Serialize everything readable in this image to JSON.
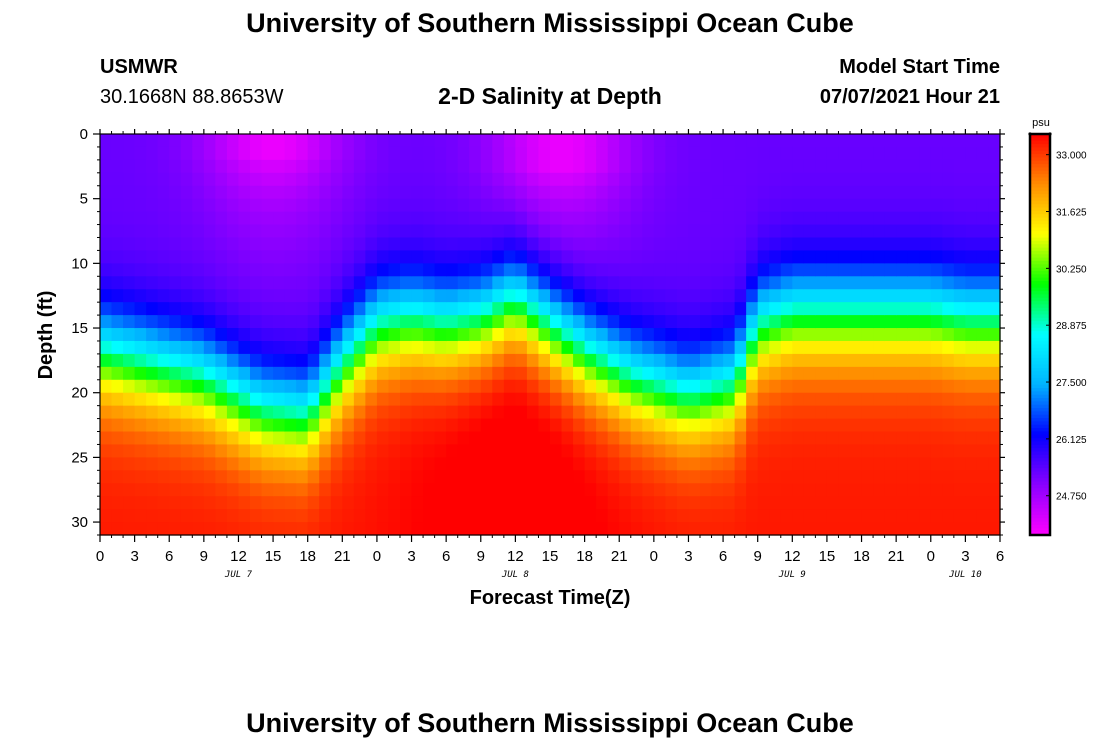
{
  "header": {
    "title": "University of Southern Mississippi Ocean Cube",
    "footer_title": "University of Southern Mississippi Ocean Cube",
    "station_name": "USMWR",
    "station_coords": "30.1668N  88.8653W",
    "model_label": "Model Start Time",
    "model_time": "07/07/2021 Hour 21"
  },
  "colors": {
    "scale": [
      "#ff00ff",
      "#8a00ff",
      "#0000ff",
      "#00b4ff",
      "#00ffff",
      "#00ff00",
      "#ffff00",
      "#ff8c00",
      "#ff0000"
    ]
  },
  "chart_data": {
    "type": "heatmap",
    "title": "2-D Salinity at Depth",
    "xlabel": "Forecast Time(Z)",
    "ylabel": "Depth (ft)",
    "colorbar_unit": "psu",
    "colorbar_range": [
      23.8,
      33.5
    ],
    "colorbar_ticks": [
      "33.000",
      "31.625",
      "30.250",
      "28.875",
      "27.500",
      "26.125",
      "24.750"
    ],
    "colorbar_tick_values": [
      33.0,
      31.625,
      30.25,
      28.875,
      27.5,
      26.125,
      24.75
    ],
    "x_range_hours": [
      0,
      78
    ],
    "x_tick_labels": [
      "0",
      "3",
      "6",
      "9",
      "12",
      "15",
      "18",
      "21",
      "0",
      "3",
      "6",
      "9",
      "12",
      "15",
      "18",
      "21",
      "0",
      "3",
      "6",
      "9",
      "12",
      "15",
      "18",
      "21",
      "0",
      "3",
      "6"
    ],
    "date_labels": [
      {
        "hour": 12,
        "label": "JUL 7"
      },
      {
        "hour": 36,
        "label": "JUL 8"
      },
      {
        "hour": 60,
        "label": "JUL 9"
      },
      {
        "hour": 75,
        "label": "JUL 10"
      }
    ],
    "y_range_ft": [
      0,
      31
    ],
    "y_tick_values": [
      0,
      5,
      10,
      15,
      20,
      25,
      30
    ],
    "y_tick_labels": [
      "0",
      "5",
      "10",
      "15",
      "20",
      "25",
      "30"
    ],
    "cell_hours": 1,
    "cell_depth_ft": 1,
    "isohaline_depth_28_9psu": {
      "hours": [
        0,
        9,
        14,
        18,
        21,
        24,
        27,
        30,
        33,
        36,
        39,
        42,
        46,
        51,
        55,
        57,
        60,
        63,
        66,
        69,
        72,
        75,
        78
      ],
      "depth_ft": [
        16.5,
        18.5,
        21.0,
        21.5,
        17.5,
        14.5,
        14.0,
        14.5,
        14.0,
        12.5,
        14.5,
        16.5,
        18.5,
        20.0,
        19.0,
        14.5,
        13.5,
        13.5,
        13.5,
        13.5,
        13.5,
        14.0,
        14.0
      ]
    },
    "fresh_water_cores": [
      {
        "hour": 15,
        "depth_ft": 1.5,
        "salinity_psu": 24.0
      },
      {
        "hour": 40,
        "depth_ft": 2.5,
        "salinity_psu": 24.6
      }
    ],
    "surface_salinity_psu": 25.3,
    "bottom_salinity_psu": 33.4
  }
}
